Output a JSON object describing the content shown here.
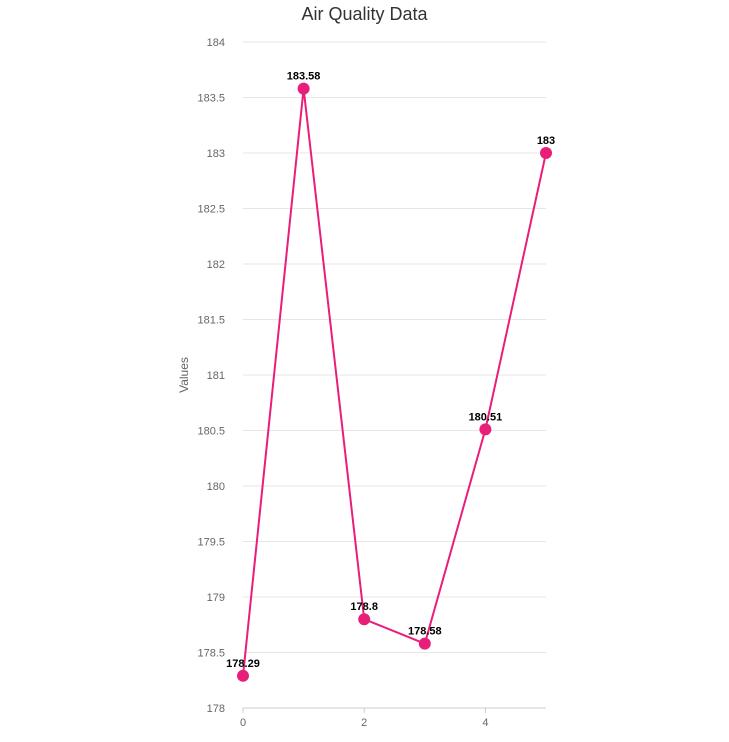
{
  "chart_data": {
    "type": "line",
    "title": "Air Quality Data",
    "xlabel": "",
    "ylabel": "Values",
    "x": [
      0,
      1,
      2,
      3,
      4,
      5
    ],
    "series": [
      {
        "values": [
          178.29,
          183.58,
          178.8,
          178.58,
          180.51,
          183
        ],
        "color": "#e91e7a"
      }
    ],
    "data_labels": [
      "178.29",
      "183.58",
      "178.8",
      "178.58",
      "180.51",
      "183"
    ],
    "xlim": [
      0,
      5
    ],
    "ylim": [
      178,
      184
    ],
    "x_ticks": [
      0,
      2,
      4
    ],
    "x_tick_labels": [
      "0",
      "2",
      "4"
    ],
    "y_ticks": [
      178,
      178.5,
      179,
      179.5,
      180,
      180.5,
      181,
      181.5,
      182,
      182.5,
      183,
      183.5,
      184
    ],
    "y_tick_labels": [
      "178",
      "178.5",
      "179",
      "179.5",
      "180",
      "180.5",
      "181",
      "181.5",
      "182",
      "182.5",
      "183",
      "183.5",
      "184"
    ],
    "grid": true,
    "legend": "none"
  }
}
